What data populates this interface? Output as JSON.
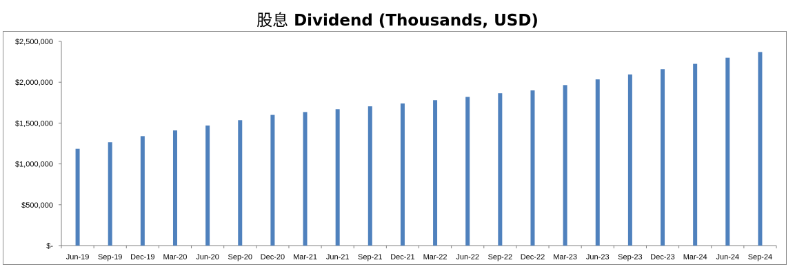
{
  "chart_data": {
    "type": "bar",
    "title_cn": "股息",
    "title": "Dividend (Thousands, USD)",
    "categories": [
      "Jun-19",
      "Sep-19",
      "Dec-19",
      "Mar-20",
      "Jun-20",
      "Sep-20",
      "Dec-20",
      "Mar-21",
      "Jun-21",
      "Sep-21",
      "Dec-21",
      "Mar-22",
      "Jun-22",
      "Sep-22",
      "Dec-22",
      "Mar-23",
      "Jun-23",
      "Sep-23",
      "Dec-23",
      "Mar-24",
      "Jun-24",
      "Sep-24"
    ],
    "values": [
      1185000,
      1265000,
      1340000,
      1410000,
      1470000,
      1535000,
      1600000,
      1635000,
      1670000,
      1705000,
      1740000,
      1780000,
      1820000,
      1865000,
      1900000,
      1965000,
      2035000,
      2095000,
      2160000,
      2225000,
      2300000,
      2370000
    ],
    "yticks": [
      "$-",
      "$500,000",
      "$1,000,000",
      "$1,500,000",
      "$2,000,000",
      "$2,500,000"
    ],
    "ylim": [
      0,
      2500000
    ],
    "bar_color": "#4f81bd",
    "grid": false
  }
}
